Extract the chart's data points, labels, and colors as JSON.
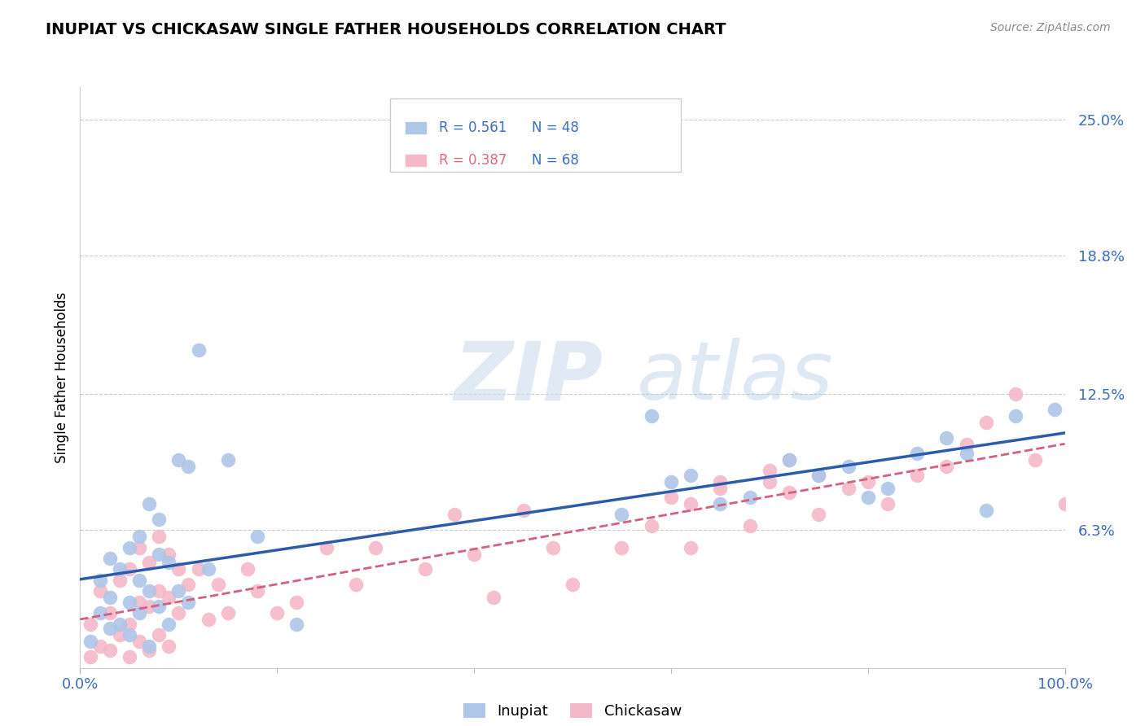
{
  "title": "INUPIAT VS CHICKASAW SINGLE FATHER HOUSEHOLDS CORRELATION CHART",
  "source": "Source: ZipAtlas.com",
  "ylabel": "Single Father Households",
  "xlim": [
    0,
    100
  ],
  "ylim": [
    0,
    26.5
  ],
  "yticks": [
    6.3,
    12.5,
    18.8,
    25.0
  ],
  "ytick_labels": [
    "6.3%",
    "12.5%",
    "18.8%",
    "25.0%"
  ],
  "inupiat_color": "#aec6e8",
  "chickasaw_color": "#f4b8c8",
  "inupiat_line_color": "#2a5caa",
  "chickasaw_line_color": "#d46080",
  "r_inupiat": 0.561,
  "n_inupiat": 48,
  "r_chickasaw": 0.387,
  "n_chickasaw": 68,
  "inupiat_x": [
    1,
    2,
    2,
    3,
    3,
    3,
    4,
    4,
    5,
    5,
    5,
    6,
    6,
    6,
    7,
    7,
    7,
    8,
    8,
    8,
    9,
    9,
    10,
    10,
    11,
    11,
    12,
    13,
    15,
    18,
    22,
    55,
    58,
    60,
    62,
    65,
    68,
    72,
    75,
    78,
    80,
    82,
    85,
    88,
    90,
    92,
    95,
    99
  ],
  "inupiat_y": [
    1.2,
    2.5,
    4.0,
    1.8,
    3.2,
    5.0,
    2.0,
    4.5,
    1.5,
    3.0,
    5.5,
    2.5,
    4.0,
    6.0,
    1.0,
    3.5,
    7.5,
    2.8,
    5.2,
    6.8,
    2.0,
    4.8,
    3.5,
    9.5,
    3.0,
    9.2,
    14.5,
    4.5,
    9.5,
    6.0,
    2.0,
    7.0,
    11.5,
    8.5,
    8.8,
    7.5,
    7.8,
    9.5,
    8.8,
    9.2,
    7.8,
    8.2,
    9.8,
    10.5,
    9.8,
    7.2,
    11.5,
    11.8
  ],
  "chickasaw_x": [
    1,
    1,
    2,
    2,
    3,
    3,
    4,
    4,
    5,
    5,
    5,
    6,
    6,
    6,
    7,
    7,
    7,
    8,
    8,
    8,
    9,
    9,
    9,
    10,
    10,
    11,
    12,
    13,
    14,
    15,
    17,
    18,
    20,
    22,
    25,
    28,
    30,
    35,
    38,
    40,
    42,
    45,
    48,
    50,
    55,
    58,
    60,
    62,
    65,
    68,
    70,
    72,
    75,
    78,
    80,
    82,
    85,
    88,
    90,
    92,
    95,
    97,
    100,
    62,
    65,
    70,
    72,
    75
  ],
  "chickasaw_y": [
    0.5,
    2.0,
    1.0,
    3.5,
    0.8,
    2.5,
    1.5,
    4.0,
    0.5,
    2.0,
    4.5,
    1.2,
    3.0,
    5.5,
    0.8,
    2.8,
    4.8,
    1.5,
    3.5,
    6.0,
    1.0,
    3.2,
    5.2,
    2.5,
    4.5,
    3.8,
    4.5,
    2.2,
    3.8,
    2.5,
    4.5,
    3.5,
    2.5,
    3.0,
    5.5,
    3.8,
    5.5,
    4.5,
    7.0,
    5.2,
    3.2,
    7.2,
    5.5,
    3.8,
    5.5,
    6.5,
    7.8,
    7.5,
    8.2,
    6.5,
    8.5,
    8.0,
    8.8,
    8.2,
    8.5,
    7.5,
    8.8,
    9.2,
    10.2,
    11.2,
    12.5,
    9.5,
    7.5,
    5.5,
    8.5,
    9.0,
    9.5,
    7.0
  ]
}
